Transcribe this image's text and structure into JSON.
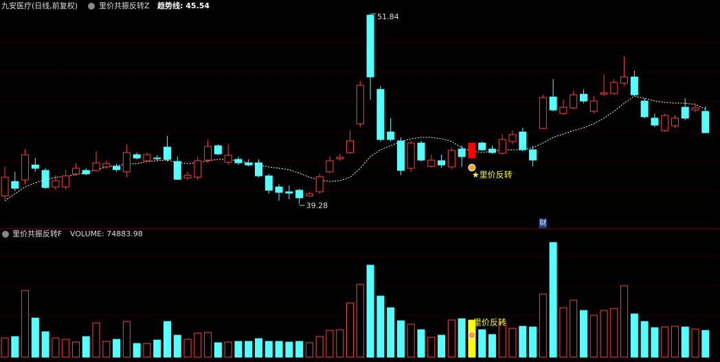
{
  "chart_data": [
    {
      "type": "candlestick",
      "title": "九安医疗(日线,前复权)",
      "indicator": "里价共振反转Z",
      "open": [
        39.82,
        40.77,
        40.87,
        41.86,
        41.5,
        40.41,
        40.41,
        41.27,
        41.5,
        41.5,
        41.73,
        41.77,
        41.41,
        42.54,
        42.14,
        42.32,
        43.04,
        42.09,
        41.0,
        41.05,
        42.18,
        43.13,
        42.04,
        42.23,
        42.0,
        42.0,
        41.14,
        40.41,
        40.09,
        40.19,
        39.82,
        40.09,
        41.41,
        42.27,
        42.68,
        44.58,
        51.75,
        46.85,
        44.04,
        43.45,
        41.64,
        43.31,
        41.77,
        42.14,
        41.73,
        42.91,
        42.32,
        43.31,
        42.91,
        42.63,
        43.41,
        44.04,
        42.86,
        44.27,
        46.35,
        45.26,
        45.63,
        46.53,
        45.4,
        46.53,
        46.58,
        47.26,
        47.67,
        46.08,
        44.95,
        44.13,
        44.45,
        45.67,
        45.49,
        45.4
      ],
      "high": [
        41.73,
        41.41,
        42.91,
        42.32,
        41.64,
        41.18,
        41.55,
        41.95,
        41.64,
        42.77,
        42.14,
        41.95,
        43.22,
        42.68,
        42.68,
        42.5,
        43.77,
        42.41,
        41.41,
        42.41,
        43.54,
        43.22,
        43.22,
        42.41,
        42.23,
        42.23,
        41.27,
        40.59,
        40.5,
        40.28,
        40.09,
        41.27,
        42.41,
        42.59,
        44.13,
        47.4,
        51.84,
        47.08,
        44.95,
        43.68,
        43.45,
        43.45,
        42.54,
        42.54,
        43.0,
        43.13,
        43.31,
        43.41,
        43.13,
        43.9,
        44.13,
        44.31,
        43.13,
        46.49,
        47.53,
        46.17,
        46.76,
        46.85,
        46.4,
        47.85,
        47.53,
        49.03,
        48.08,
        46.26,
        45.26,
        45.26,
        45.13,
        46.26,
        45.94,
        45.72
      ],
      "low": [
        39.6,
        40.14,
        40.59,
        41.41,
        40.28,
        40.23,
        40.23,
        41.14,
        41.18,
        41.41,
        41.59,
        41.41,
        41.05,
        42.23,
        42.04,
        42.14,
        42.09,
        40.87,
        40.87,
        40.87,
        42.0,
        42.5,
        41.86,
        41.86,
        41.77,
        41.05,
        39.96,
        39.5,
        39.6,
        39.28,
        39.78,
        39.96,
        41.32,
        42.14,
        42.59,
        44.36,
        46.17,
        43.41,
        43.41,
        41.18,
        41.41,
        42.09,
        41.68,
        41.68,
        41.59,
        41.73,
        42.23,
        42.77,
        42.59,
        42.54,
        43.22,
        42.77,
        41.77,
        44.22,
        45.4,
        45.17,
        45.49,
        45.94,
        45.26,
        46.4,
        46.49,
        47.08,
        46.4,
        44.95,
        44.36,
        44.04,
        44.31,
        44.81,
        45.35,
        43.95
      ],
      "close": [
        41.05,
        40.32,
        42.54,
        41.64,
        40.37,
        40.82,
        41.14,
        41.64,
        41.27,
        42.0,
        41.95,
        41.55,
        42.68,
        42.32,
        42.54,
        42.27,
        42.23,
        40.91,
        41.18,
        42.14,
        43.09,
        42.59,
        42.5,
        42.0,
        41.86,
        41.14,
        40.19,
        40.05,
        40.0,
        39.69,
        39.96,
        41.09,
        42.14,
        42.36,
        43.45,
        47.12,
        47.67,
        43.54,
        43.54,
        41.5,
        43.31,
        42.18,
        42.18,
        41.86,
        42.82,
        42.41,
        43.31,
        42.86,
        42.68,
        43.54,
        43.86,
        42.86,
        42.18,
        46.31,
        45.49,
        45.67,
        46.49,
        46.08,
        46.08,
        46.62,
        47.31,
        47.67,
        46.49,
        45.04,
        44.49,
        45.13,
        44.95,
        44.95,
        45.63,
        43.99
      ],
      "trend": {
        "label": "趋势线: 45.54",
        "color": "#ffffff",
        "values": [
          39.5,
          39.96,
          40.41,
          40.68,
          40.87,
          41.05,
          41.09,
          41.23,
          41.36,
          41.55,
          41.73,
          41.82,
          41.91,
          41.95,
          42.09,
          42.14,
          42.18,
          42.04,
          41.95,
          42.0,
          42.14,
          42.23,
          42.23,
          42.14,
          42.0,
          41.86,
          41.73,
          41.64,
          41.55,
          41.32,
          41.05,
          40.87,
          40.77,
          40.82,
          41.05,
          41.64,
          42.41,
          42.86,
          43.13,
          43.41,
          43.59,
          43.68,
          43.68,
          43.59,
          43.41,
          43.0,
          42.77,
          42.68,
          42.77,
          42.86,
          42.86,
          42.86,
          43.0,
          43.31,
          43.68,
          43.9,
          44.13,
          44.31,
          44.58,
          44.95,
          45.4,
          45.94,
          46.4,
          46.26,
          46.08,
          45.99,
          45.94,
          45.94,
          45.85,
          45.54
        ]
      },
      "up_color": "#ff4040",
      "down_color": "#54ffff",
      "signal": {
        "index": 46,
        "label": "★里价反转",
        "color": "#ff0000"
      },
      "marker": {
        "index": 53,
        "label": "财"
      },
      "high_mark": 36,
      "low_mark": 29,
      "ylim": [
        37.65,
        52.07
      ]
    },
    {
      "type": "bar",
      "title": "里价共振反转F",
      "legend": "VOLUME: 74883.98",
      "values": [
        53763,
        57603,
        186250,
        109446,
        71044,
        53763,
        49923,
        42242,
        57603,
        96005,
        44162,
        49923,
        99845,
        38402,
        38402,
        48003,
        99845,
        61443,
        49923,
        67204,
        69124,
        40322,
        42242,
        44162,
        44162,
        51843,
        44162,
        44162,
        42242,
        44162,
        40322,
        57603,
        74884,
        76804,
        151688,
        203531,
        257293,
        170889,
        138247,
        101765,
        92165,
        76804,
        55683,
        61443,
        103685,
        107526,
        103685,
        76804,
        63363,
        96005,
        80644,
        86405,
        84484,
        176649,
        320657,
        138247,
        159368,
        130567,
        117126,
        130567,
        136327,
        199690,
        120966,
        99845,
        82564,
        84484,
        86405,
        84484,
        78724,
        74883.98
      ],
      "signal": {
        "index": 46,
        "label": "里价反转",
        "color": "#ffff00"
      },
      "ylim": [
        0,
        355219
      ]
    }
  ]
}
